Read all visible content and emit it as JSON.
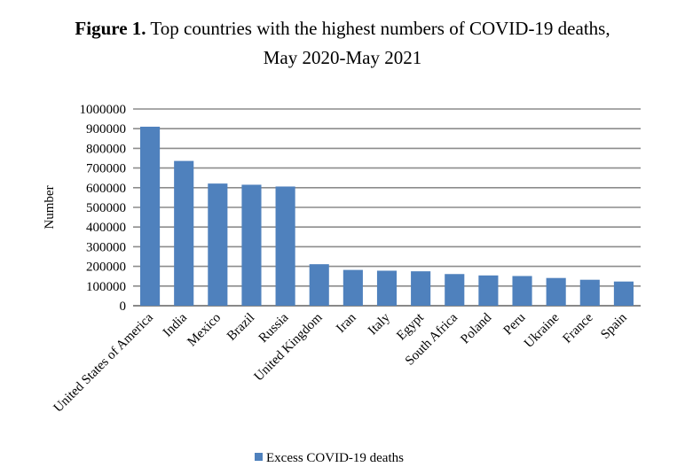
{
  "chart_data": {
    "type": "bar",
    "title_bold": "Figure 1.",
    "title": "Top countries with the highest numbers of COVID-19 deaths,",
    "subtitle": "May 2020-May 2021",
    "xlabel": "",
    "ylabel": "Number",
    "ylim": [
      0,
      1000000
    ],
    "yticks": [
      0,
      100000,
      200000,
      300000,
      400000,
      500000,
      600000,
      700000,
      800000,
      900000,
      1000000
    ],
    "grid": true,
    "legend_position": "bottom",
    "categories": [
      "United States of America",
      "India",
      "Mexico",
      "Brazil",
      "Russia",
      "United Kingdom",
      "Iran",
      "Italy",
      "Egypt",
      "South Africa",
      "Poland",
      "Peru",
      "Ukraine",
      "France",
      "Spain"
    ],
    "series": [
      {
        "name": "Excess COVID-19 deaths",
        "color": "#4f81bd",
        "values": [
          910000,
          736000,
          621000,
          615000,
          606000,
          211000,
          182000,
          178000,
          175000,
          161000,
          154000,
          151000,
          141000,
          132000,
          123000
        ]
      }
    ]
  }
}
